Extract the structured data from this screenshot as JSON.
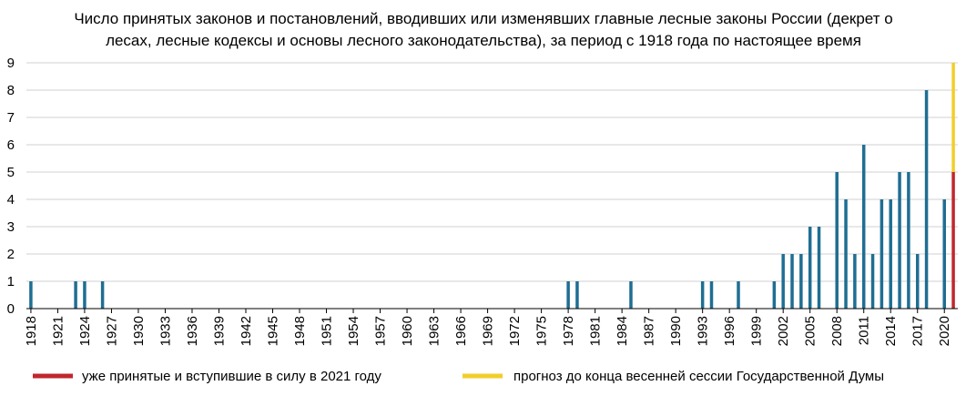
{
  "chart_data": {
    "type": "bar",
    "title_lines": [
      "Число принятых законов и постановлений, вводивших или изменявших главные лесные законы России (декрет о",
      "лесах, лесные кодексы и основы лесного законодательства), за период с 1918 года по настоящее время"
    ],
    "x_start": 1918,
    "x_end": 2021,
    "x_tick_step": 3,
    "ylim": [
      0,
      9
    ],
    "y_ticks": [
      0,
      1,
      2,
      3,
      4,
      5,
      6,
      7,
      8,
      9
    ],
    "grid": true,
    "legend_position": "bottom",
    "series": [
      {
        "key": "main",
        "color": "#1F6E93",
        "points": [
          {
            "year": 1918,
            "value": 1
          },
          {
            "year": 1923,
            "value": 1
          },
          {
            "year": 1924,
            "value": 1
          },
          {
            "year": 1926,
            "value": 1
          },
          {
            "year": 1978,
            "value": 1
          },
          {
            "year": 1979,
            "value": 1
          },
          {
            "year": 1985,
            "value": 1
          },
          {
            "year": 1993,
            "value": 1
          },
          {
            "year": 1994,
            "value": 1
          },
          {
            "year": 1997,
            "value": 1
          },
          {
            "year": 2001,
            "value": 1
          },
          {
            "year": 2002,
            "value": 2
          },
          {
            "year": 2003,
            "value": 2
          },
          {
            "year": 2004,
            "value": 2
          },
          {
            "year": 2005,
            "value": 3
          },
          {
            "year": 2006,
            "value": 3
          },
          {
            "year": 2008,
            "value": 5
          },
          {
            "year": 2009,
            "value": 4
          },
          {
            "year": 2010,
            "value": 2
          },
          {
            "year": 2011,
            "value": 6
          },
          {
            "year": 2012,
            "value": 2
          },
          {
            "year": 2013,
            "value": 4
          },
          {
            "year": 2014,
            "value": 4
          },
          {
            "year": 2015,
            "value": 5
          },
          {
            "year": 2016,
            "value": 5
          },
          {
            "year": 2017,
            "value": 2
          },
          {
            "year": 2018,
            "value": 8
          },
          {
            "year": 2020,
            "value": 4
          }
        ]
      },
      {
        "key": "adopted_2021",
        "name": "уже принятые и вступившие в силу в 2021 году",
        "color": "#C0272D",
        "points": [
          {
            "year": 2021,
            "value": 5
          }
        ]
      },
      {
        "key": "forecast_2021",
        "name": "прогноз до конца весенней сессии Государственной Думы",
        "color": "#F2CE2A",
        "stack_on": "adopted_2021",
        "points": [
          {
            "year": 2021,
            "value": 4
          }
        ]
      }
    ]
  }
}
